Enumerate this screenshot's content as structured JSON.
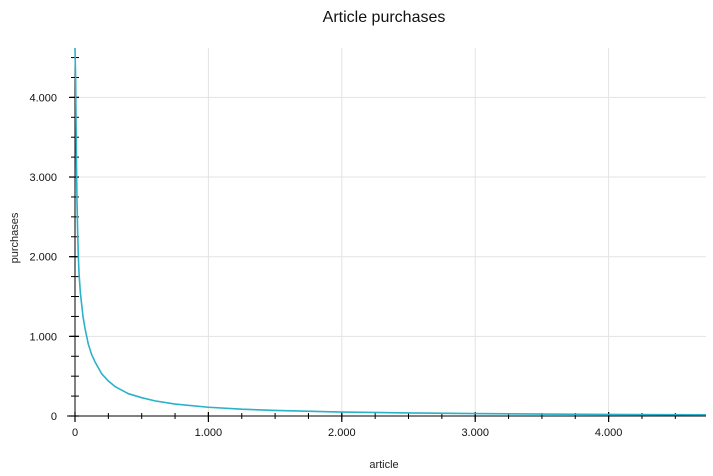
{
  "chart_data": {
    "type": "line",
    "title": "Article purchases",
    "xlabel": "article",
    "ylabel": "purchases",
    "xlim": [
      0,
      4730
    ],
    "ylim": [
      0,
      4620
    ],
    "x_ticks": [
      {
        "value": 0,
        "label": "0"
      },
      {
        "value": 1000,
        "label": "1.000"
      },
      {
        "value": 2000,
        "label": "2.000"
      },
      {
        "value": 3000,
        "label": "3.000"
      },
      {
        "value": 4000,
        "label": "4.000"
      }
    ],
    "y_ticks": [
      {
        "value": 0,
        "label": "0"
      },
      {
        "value": 1000,
        "label": "1.000"
      },
      {
        "value": 2000,
        "label": "2.000"
      },
      {
        "value": 3000,
        "label": "3.000"
      },
      {
        "value": 4000,
        "label": "4.000"
      }
    ],
    "x_minor_step": 250,
    "y_minor_step": 250,
    "grid": true,
    "colors": {
      "line": "#29b2c8",
      "grid": "#e3e3e3",
      "axis": "#000000"
    },
    "series": [
      {
        "x": [
          0,
          5,
          10,
          15,
          20,
          25,
          30,
          40,
          50,
          60,
          75,
          100,
          125,
          150,
          200,
          250,
          300,
          400,
          500,
          600,
          750,
          1000,
          1250,
          1500,
          2000,
          2500,
          3000,
          3500,
          4000,
          4500,
          4730
        ],
        "values": [
          4620,
          4200,
          3300,
          2700,
          2300,
          2000,
          1800,
          1550,
          1400,
          1250,
          1100,
          900,
          770,
          680,
          530,
          440,
          370,
          280,
          230,
          190,
          150,
          110,
          85,
          70,
          50,
          38,
          30,
          24,
          20,
          16,
          15
        ]
      }
    ]
  }
}
